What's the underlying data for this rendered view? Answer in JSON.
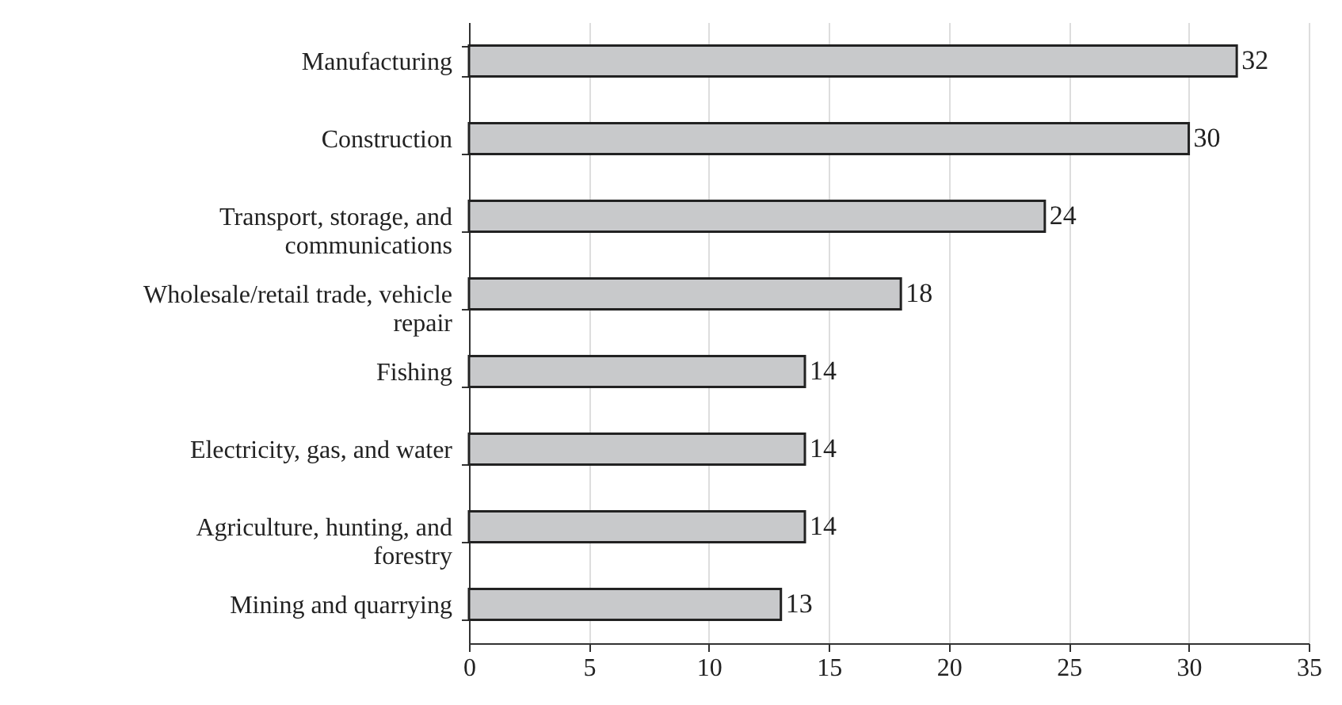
{
  "chart_data": {
    "type": "bar",
    "orientation": "horizontal",
    "categories": [
      "Manufacturing",
      "Construction",
      "Transport, storage, and communications",
      "Wholesale/retail trade, vehicle repair",
      "Fishing",
      "Electricity, gas, and water",
      "Agriculture, hunting, and forestry",
      "Mining and quarrying"
    ],
    "values": [
      32,
      30,
      24,
      18,
      14,
      14,
      14,
      13
    ],
    "color": "#c8c9cb",
    "xlim": [
      0,
      35
    ],
    "xticks": [
      0,
      5,
      10,
      15,
      20,
      25,
      30,
      35
    ],
    "grid": "x",
    "data_labels": true
  }
}
